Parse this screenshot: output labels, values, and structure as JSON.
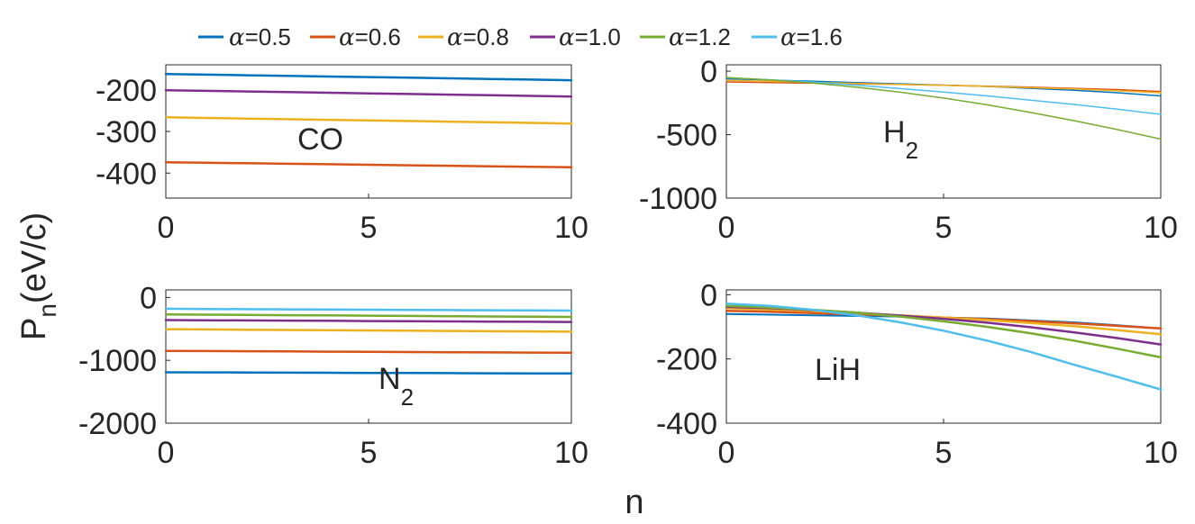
{
  "figure": {
    "xlabel": "n",
    "ylabel_main": "P",
    "ylabel_sub": "n",
    "ylabel_unit": "(eV/c)"
  },
  "legend": [
    {
      "key": "a05",
      "prefix": "α",
      "value": "=0.5",
      "color": "#0072BD"
    },
    {
      "key": "a06",
      "prefix": "α",
      "value": "=0.6",
      "color": "#D95319"
    },
    {
      "key": "a08",
      "prefix": "α",
      "value": "=0.8",
      "color": "#EDB120"
    },
    {
      "key": "a10",
      "prefix": "α",
      "value": "=1.0",
      "color": "#7E2F8E"
    },
    {
      "key": "a12",
      "prefix": "α",
      "value": "=1.2",
      "color": "#77AC30"
    },
    {
      "key": "a16",
      "prefix": "α",
      "value": "=1.6",
      "color": "#4DBEEE"
    }
  ],
  "chart_data": [
    {
      "id": "co",
      "type": "line",
      "label_main": "CO",
      "label_sub": "",
      "xlim": [
        0,
        10
      ],
      "ylim": [
        -460,
        -140
      ],
      "xticks": [
        {
          "v": 0,
          "t": "0"
        },
        {
          "v": 5,
          "t": "5"
        },
        {
          "v": 10,
          "t": "10"
        }
      ],
      "yticks": [
        {
          "v": -200,
          "t": "-200"
        },
        {
          "v": -300,
          "t": "-300"
        },
        {
          "v": -400,
          "t": "-400"
        }
      ],
      "series": [
        {
          "key": "a05",
          "width": 2.5,
          "values": [
            -162,
            -163.5,
            -165,
            -166.5,
            -168,
            -169.5,
            -171,
            -172.5,
            -174,
            -175.5,
            -177
          ]
        },
        {
          "key": "a10",
          "width": 2.5,
          "values": [
            -201,
            -202.5,
            -204,
            -205.5,
            -207,
            -208.5,
            -210,
            -211.5,
            -213,
            -214.5,
            -216
          ]
        },
        {
          "key": "a08",
          "width": 2.5,
          "values": [
            -266,
            -267.5,
            -269,
            -270.5,
            -272,
            -273.5,
            -275,
            -276.5,
            -278,
            -279.5,
            -281
          ]
        },
        {
          "key": "a06",
          "width": 2.5,
          "values": [
            -374,
            -375.2,
            -376.4,
            -377.6,
            -378.8,
            -380,
            -381.2,
            -382.4,
            -383.6,
            -384.8,
            -386
          ]
        }
      ]
    },
    {
      "id": "h2",
      "type": "line",
      "label_main": "H",
      "label_sub": "2",
      "xlim": [
        0,
        10
      ],
      "ylim": [
        -1000,
        50
      ],
      "xticks": [
        {
          "v": 0,
          "t": "0"
        },
        {
          "v": 5,
          "t": "5"
        },
        {
          "v": 10,
          "t": "10"
        }
      ],
      "yticks": [
        {
          "v": 0,
          "t": "0"
        },
        {
          "v": -500,
          "t": "-500"
        },
        {
          "v": -1000,
          "t": "-1000"
        }
      ],
      "series": [
        {
          "key": "a05",
          "width": 1.5,
          "values": [
            -60,
            -70,
            -80,
            -90,
            -100,
            -110,
            -120,
            -135,
            -150,
            -170,
            -195
          ]
        },
        {
          "key": "a06",
          "width": 1.5,
          "values": [
            -85,
            -90,
            -95,
            -100,
            -105,
            -110,
            -118,
            -125,
            -135,
            -145,
            -160
          ]
        },
        {
          "key": "a08",
          "width": 1.5,
          "values": [
            -72,
            -80,
            -88,
            -96,
            -104,
            -112,
            -120,
            -130,
            -140,
            -155,
            -170
          ]
        },
        {
          "key": "a16",
          "width": 1.5,
          "values": [
            -52,
            -68,
            -87,
            -110,
            -137,
            -165,
            -195,
            -228,
            -262,
            -300,
            -340
          ]
        },
        {
          "key": "a12",
          "width": 1.5,
          "values": [
            -50,
            -69,
            -94,
            -127,
            -166,
            -212,
            -265,
            -325,
            -390,
            -460,
            -535
          ]
        }
      ]
    },
    {
      "id": "n2",
      "type": "line",
      "label_main": "N",
      "label_sub": "2",
      "xlim": [
        0,
        10
      ],
      "ylim": [
        -2000,
        120
      ],
      "xticks": [
        {
          "v": 0,
          "t": "0"
        },
        {
          "v": 5,
          "t": "5"
        },
        {
          "v": 10,
          "t": "10"
        }
      ],
      "yticks": [
        {
          "v": 0,
          "t": "0"
        },
        {
          "v": -1000,
          "t": "-1000"
        },
        {
          "v": -2000,
          "t": "-2000"
        }
      ],
      "series": [
        {
          "key": "a16",
          "width": 2.5,
          "values": [
            -180,
            -183,
            -186,
            -189,
            -192,
            -195,
            -198,
            -201,
            -204,
            -207,
            -210
          ]
        },
        {
          "key": "a12",
          "width": 2.5,
          "values": [
            -270,
            -274,
            -278,
            -282,
            -286,
            -290,
            -294,
            -298,
            -302,
            -306,
            -310
          ]
        },
        {
          "key": "a10",
          "width": 2.5,
          "values": [
            -360,
            -363,
            -366,
            -369,
            -372,
            -375,
            -378,
            -381,
            -384,
            -387,
            -390
          ]
        },
        {
          "key": "a08",
          "width": 2.5,
          "values": [
            -505,
            -509,
            -513,
            -517,
            -521,
            -525,
            -529,
            -533,
            -537,
            -541,
            -545
          ]
        },
        {
          "key": "a06",
          "width": 2.5,
          "values": [
            -850,
            -853,
            -856,
            -859,
            -862,
            -865,
            -868,
            -871,
            -874,
            -877,
            -880
          ]
        },
        {
          "key": "a05",
          "width": 2.5,
          "values": [
            -1190,
            -1192,
            -1194,
            -1196,
            -1198,
            -1200,
            -1202,
            -1204,
            -1206,
            -1208,
            -1210
          ]
        }
      ]
    },
    {
      "id": "lih",
      "type": "line",
      "label_main": "LiH",
      "label_sub": "",
      "xlim": [
        0,
        10
      ],
      "ylim": [
        -400,
        15
      ],
      "xticks": [
        {
          "v": 0,
          "t": "0"
        },
        {
          "v": 5,
          "t": "5"
        },
        {
          "v": 10,
          "t": "10"
        }
      ],
      "yticks": [
        {
          "v": 0,
          "t": "0"
        },
        {
          "v": -200,
          "t": "-200"
        },
        {
          "v": -400,
          "t": "-400"
        }
      ],
      "series": [
        {
          "key": "a05",
          "width": 2,
          "values": [
            -60,
            -62,
            -64,
            -66,
            -68,
            -71,
            -74,
            -80,
            -86,
            -95,
            -105
          ]
        },
        {
          "key": "a06",
          "width": 2.5,
          "values": [
            -50,
            -53,
            -57,
            -61,
            -66,
            -71,
            -76,
            -82,
            -89,
            -97,
            -105
          ]
        },
        {
          "key": "a08",
          "width": 2.5,
          "values": [
            -42,
            -46,
            -51,
            -57,
            -64,
            -71,
            -79,
            -88,
            -98,
            -110,
            -123
          ]
        },
        {
          "key": "a10",
          "width": 2.5,
          "values": [
            -38,
            -42,
            -48,
            -56,
            -65,
            -75,
            -87,
            -101,
            -117,
            -135,
            -155
          ]
        },
        {
          "key": "a12",
          "width": 2.5,
          "values": [
            -35,
            -40,
            -47,
            -56,
            -68,
            -83,
            -100,
            -120,
            -143,
            -168,
            -195
          ]
        },
        {
          "key": "a16",
          "width": 2.5,
          "values": [
            -28,
            -35,
            -47,
            -64,
            -86,
            -112,
            -143,
            -178,
            -218,
            -256,
            -295
          ]
        }
      ]
    }
  ]
}
